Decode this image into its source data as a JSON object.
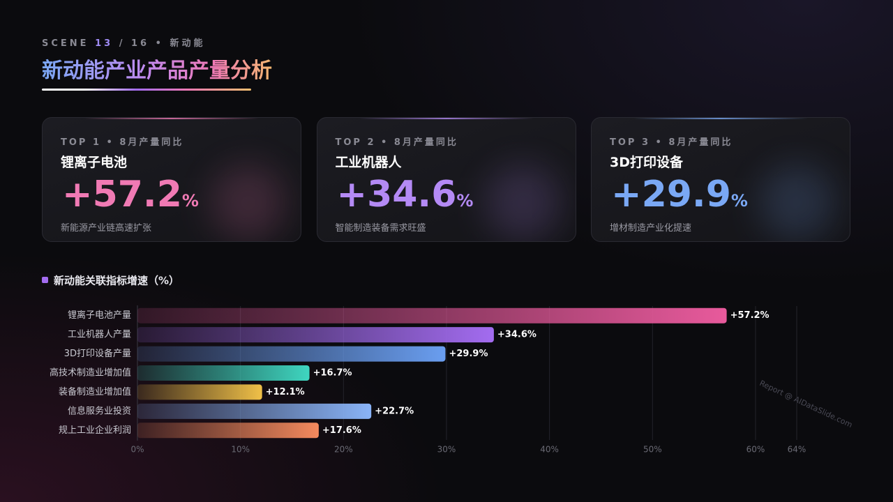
{
  "header": {
    "eyebrow": {
      "label": "SCENE",
      "current": "13",
      "total": "/ 16",
      "section": "• 新动能"
    },
    "title": "新动能产业产品产量分析"
  },
  "cards": [
    {
      "tag": "TOP 1 • 8月产量同比",
      "title": "锂离子电池",
      "value": "+57.2",
      "unit": "%",
      "note": "新能源产业链高速扩张",
      "color": "#f07ab4"
    },
    {
      "tag": "TOP 2 • 8月产量同比",
      "title": "工业机器人",
      "value": "+34.6",
      "unit": "%",
      "note": "智能制造装备需求旺盛",
      "color": "#b48af5"
    },
    {
      "tag": "TOP 3 • 8月产量同比",
      "title": "3D打印设备",
      "value": "+29.9",
      "unit": "%",
      "note": "增材制造产业化提速",
      "color": "#7aa8f5"
    }
  ],
  "chart_data": {
    "type": "bar",
    "orientation": "horizontal",
    "title": "新动能关联指标增速（%）",
    "categories": [
      "锂离子电池产量",
      "工业机器人产量",
      "3D打印设备产量",
      "高技术制造业增加值",
      "装备制造业增加值",
      "信息服务业投资",
      "规上工业企业利润"
    ],
    "values": [
      57.2,
      34.6,
      29.9,
      16.7,
      12.1,
      22.7,
      17.6
    ],
    "value_labels": [
      "+57.2%",
      "+34.6%",
      "+29.9%",
      "+16.7%",
      "+12.1%",
      "+22.7%",
      "+17.6%"
    ],
    "colors": [
      "#e85a9c",
      "#a36cf0",
      "#6a9ef0",
      "#3fd6c0",
      "#f0c048",
      "#8ab4f8",
      "#f58a5e"
    ],
    "xlim": [
      0,
      64
    ],
    "xticks": [
      {
        "value": 0,
        "label": "0%"
      },
      {
        "value": 10,
        "label": "10%"
      },
      {
        "value": 20,
        "label": "20%"
      },
      {
        "value": 30,
        "label": "30%"
      },
      {
        "value": 40,
        "label": "40%"
      },
      {
        "value": 50,
        "label": "50%"
      },
      {
        "value": 60,
        "label": "60%"
      },
      {
        "value": 64,
        "label": "64%"
      }
    ],
    "grid": true,
    "watermark": "Report @ AIDataSlide.com"
  }
}
